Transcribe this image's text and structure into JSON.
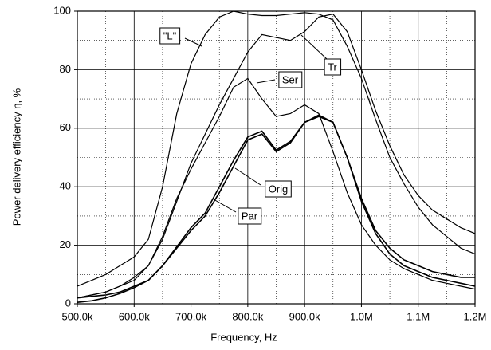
{
  "chart_data": {
    "type": "line",
    "x_label": "Frequency, Hz",
    "y_label": "Power delivery efficiency η, %",
    "x": [
      500000,
      525000,
      550000,
      575000,
      600000,
      625000,
      650000,
      675000,
      700000,
      725000,
      750000,
      775000,
      800000,
      825000,
      850000,
      875000,
      900000,
      925000,
      950000,
      975000,
      1000000,
      1025000,
      1050000,
      1075000,
      1100000,
      1125000,
      1150000,
      1175000,
      1200000
    ],
    "series": [
      {
        "name": "\"L\"",
        "color": "#000000",
        "values": [
          6,
          8,
          10,
          13,
          16,
          22,
          40,
          65,
          82,
          92,
          98,
          100,
          99,
          98.5,
          98.5,
          99,
          99.5,
          99,
          97,
          88,
          77,
          63,
          50,
          41,
          33,
          27,
          23,
          19,
          17
        ]
      },
      {
        "name": "Tr",
        "color": "#000000",
        "values": [
          2,
          3,
          4,
          6,
          9,
          13,
          22,
          35,
          48,
          58,
          68,
          77,
          86,
          92,
          91,
          90,
          93,
          98,
          99,
          93,
          80,
          66,
          54,
          44,
          37,
          32,
          29,
          26,
          24
        ]
      },
      {
        "name": "Ser",
        "color": "#000000",
        "values": [
          2,
          3,
          4,
          6,
          8,
          13,
          23,
          36,
          46,
          55,
          64,
          74,
          77,
          70,
          64,
          65,
          68,
          65,
          52,
          38,
          27,
          20,
          15,
          12,
          10,
          8,
          7,
          6,
          5
        ]
      },
      {
        "name": "Orig",
        "color": "#000000",
        "values": [
          2,
          2.5,
          3,
          4,
          6,
          8,
          13,
          19,
          25,
          30,
          38,
          47,
          56,
          58,
          52,
          55,
          62,
          64,
          62,
          50,
          36,
          25,
          19,
          15,
          13,
          11,
          10,
          9,
          9
        ]
      },
      {
        "name": "Par",
        "color": "#000000",
        "values": [
          0.5,
          1,
          2,
          3.5,
          5.5,
          8,
          13,
          19.5,
          26,
          31,
          40,
          49,
          57,
          59,
          52.5,
          55.5,
          62,
          64.5,
          62,
          50,
          35,
          24,
          17,
          13,
          11,
          9,
          8,
          7,
          6
        ]
      }
    ],
    "xlim": [
      500000,
      1200000
    ],
    "xticks": [
      {
        "value": 500000,
        "label": "500.0k"
      },
      {
        "value": 600000,
        "label": "600.0k"
      },
      {
        "value": 700000,
        "label": "700.0k"
      },
      {
        "value": 800000,
        "label": "800.0k"
      },
      {
        "value": 900000,
        "label": "900.0k"
      },
      {
        "value": 1000000,
        "label": "1.0M"
      },
      {
        "value": 1100000,
        "label": "1.1M"
      },
      {
        "value": 1200000,
        "label": "1.2M"
      }
    ],
    "ylim": [
      0,
      100
    ],
    "yticks": [
      0,
      20,
      40,
      60,
      80,
      100
    ],
    "grid": true
  }
}
